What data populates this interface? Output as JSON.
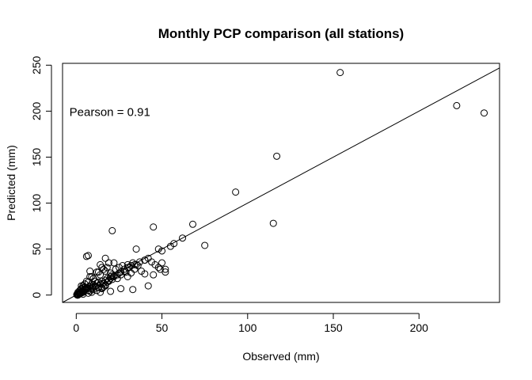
{
  "chart_data": {
    "type": "scatter",
    "title": "Monthly PCP comparison (all stations)",
    "xlabel": "Observed (mm)",
    "ylabel": "Predicted (mm)",
    "xlim": [
      -8,
      247
    ],
    "ylim": [
      -8,
      252
    ],
    "x_ticks": [
      0,
      50,
      100,
      150,
      200
    ],
    "y_ticks": [
      0,
      50,
      100,
      150,
      200,
      250
    ],
    "grid": false,
    "annotation": {
      "text": "Pearson = 0.91",
      "x": -4,
      "y": 199
    },
    "fit_line": {
      "slope": 1.0,
      "intercept": 0
    },
    "series": [
      {
        "x": [
          0.5,
          1,
          1.5,
          2,
          2.5,
          3,
          0.8,
          1.2,
          3.5,
          4,
          4.5,
          5,
          0.3,
          2.2,
          3.8,
          1.8,
          0.6,
          2.7,
          5.5,
          6,
          6.5,
          7,
          7.5,
          8,
          8.5,
          9,
          9.5,
          10,
          11,
          12,
          13,
          14,
          15,
          16,
          17,
          18,
          19,
          20,
          21,
          22,
          2,
          3,
          4,
          5,
          6,
          1,
          2,
          3,
          4,
          7,
          8,
          9,
          10,
          11,
          12,
          13,
          14,
          15,
          16,
          17,
          18,
          19,
          20,
          22,
          24,
          26,
          28,
          30,
          32,
          34,
          5,
          6,
          8,
          10,
          12,
          14,
          16,
          18,
          20,
          22,
          3,
          5,
          7,
          9,
          11,
          13,
          15,
          17,
          19,
          21,
          23,
          25,
          27,
          29,
          31,
          33,
          35,
          37,
          40,
          42,
          44,
          46,
          48,
          50,
          52,
          24,
          26,
          28,
          30,
          32,
          34,
          36,
          38,
          40,
          45,
          48,
          50,
          52,
          25,
          30,
          35,
          40,
          15,
          17,
          6,
          7,
          20,
          26,
          33,
          42,
          49,
          55,
          57,
          62,
          68,
          75,
          93,
          115,
          117,
          154,
          222,
          238,
          45,
          21,
          1,
          4,
          10,
          8,
          14,
          17
        ],
        "y": [
          1,
          0.5,
          2,
          1.5,
          3,
          2.5,
          0,
          1,
          4,
          3,
          5,
          6,
          0.5,
          2,
          3.5,
          1,
          0,
          2,
          6,
          7,
          8,
          5,
          9,
          10,
          7,
          12,
          8,
          11,
          9,
          13,
          14,
          12,
          15,
          13,
          16,
          18,
          15,
          20,
          17,
          21,
          5,
          7,
          10,
          12,
          8,
          3,
          4,
          6,
          8,
          2,
          4,
          3,
          6,
          10,
          5,
          8,
          3,
          7,
          9,
          11,
          14,
          16,
          18,
          20,
          22,
          25,
          28,
          30,
          32,
          33,
          12,
          15,
          20,
          18,
          25,
          22,
          28,
          30,
          24,
          35,
          10,
          8,
          14,
          20,
          15,
          25,
          30,
          26,
          35,
          22,
          28,
          30,
          32,
          25,
          30,
          35,
          33,
          36,
          38,
          40,
          36,
          33,
          30,
          35,
          28,
          18,
          22,
          26,
          20,
          24,
          28,
          32,
          26,
          38,
          22,
          50,
          48,
          25,
          24,
          33,
          50,
          23,
          8,
          10,
          42,
          43,
          4,
          7,
          6,
          10,
          28,
          53,
          56,
          62,
          77,
          54,
          112,
          78,
          151,
          242,
          206,
          198,
          74,
          70,
          0,
          1,
          18,
          26,
          33,
          40
        ]
      }
    ]
  }
}
